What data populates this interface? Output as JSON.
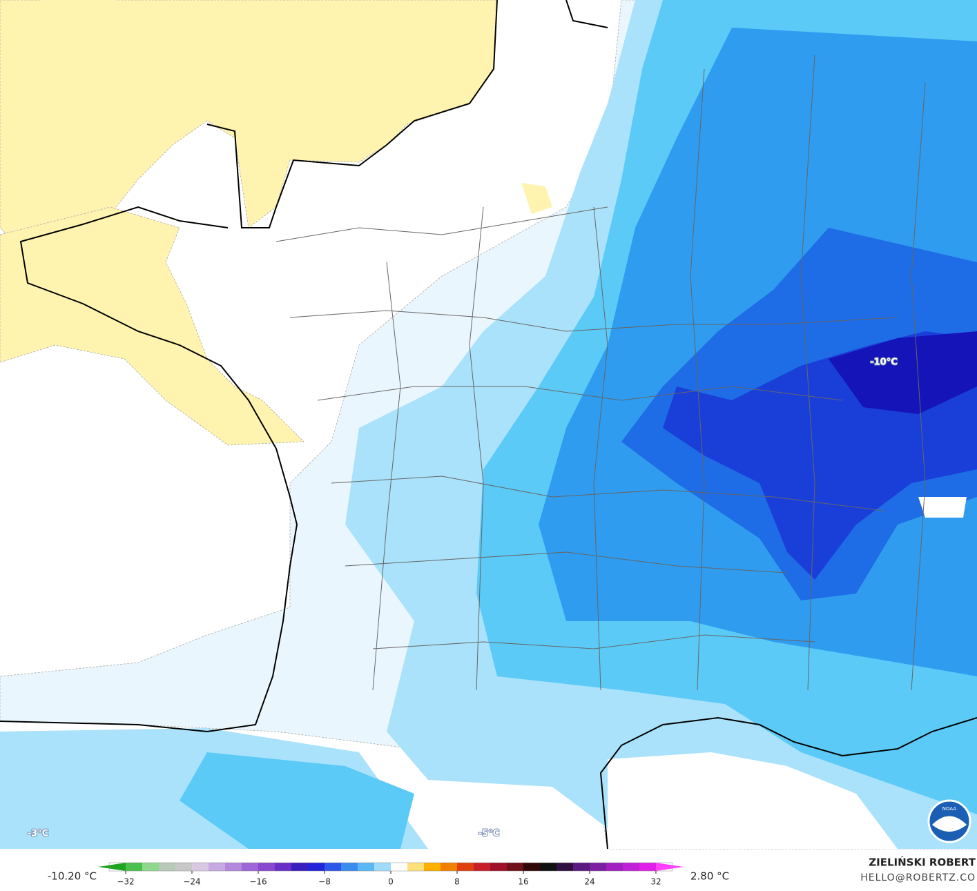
{
  "map": {
    "labels": [
      "-10°C",
      "-3°C",
      "-5°C"
    ]
  },
  "legend": {
    "min_label": "-10.20 °C",
    "max_label": "2.80 °C",
    "range": [
      -34,
      34
    ],
    "ticks": [
      {
        "value": -32,
        "label": "−32"
      },
      {
        "value": -24,
        "label": "−24"
      },
      {
        "value": -16,
        "label": "−16"
      },
      {
        "value": -8,
        "label": "−8"
      },
      0,
      8,
      16,
      24,
      32
    ],
    "colors": [
      "#1fa51f",
      "#4cc04c",
      "#8ed98e",
      "#b9c9b9",
      "#c8c8c8",
      "#d8c8e4",
      "#c7a8e2",
      "#b388dd",
      "#9e66d6",
      "#8a47cf",
      "#6a2fc8",
      "#3a1fc0",
      "#2323d9",
      "#2d56ea",
      "#3c8cf0",
      "#5ab8f6",
      "#9fdcfb",
      "#ffffff",
      "#ffe07a",
      "#ffb000",
      "#f08000",
      "#e04010",
      "#c81e2a",
      "#a01028",
      "#701018",
      "#300808",
      "#101010",
      "#301040",
      "#5a1a80",
      "#7a20a0",
      "#a020c0",
      "#c020d8",
      "#e020e8",
      "#ff40ff"
    ]
  },
  "credits": {
    "author": "ZIELIŃSKI ROBERT",
    "contact": "HELLO@ROBERTZ.CO",
    "logo": "NOAA"
  }
}
